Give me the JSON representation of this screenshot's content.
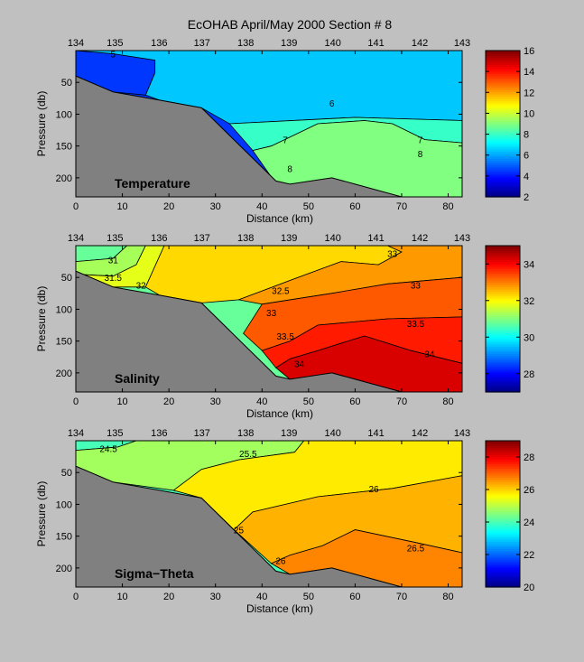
{
  "figure": {
    "title": "EcOHAB   April/May 2000   Section # 8"
  },
  "chart_data": [
    {
      "type": "heatmap",
      "panel_label": "Temperature",
      "xlabel": "Distance (km)",
      "ylabel": "Pressure (db)",
      "xlim": [
        0,
        83
      ],
      "ylim": [
        230,
        0
      ],
      "x_ticks": [
        0,
        10,
        20,
        30,
        40,
        50,
        60,
        70,
        80
      ],
      "y_ticks": [
        50,
        100,
        150,
        200
      ],
      "station_ticks": [
        "134",
        "135",
        "136",
        "137",
        "138",
        "139",
        "140",
        "141",
        "142",
        "143"
      ],
      "station_km": [
        0,
        8.4,
        17.9,
        27.1,
        36.5,
        45.8,
        55.2,
        64.5,
        73.9,
        83
      ],
      "colorbar": {
        "min": 2,
        "max": 16,
        "ticks": [
          2,
          4,
          6,
          8,
          10,
          12,
          14,
          16
        ]
      },
      "bathymetry": [
        [
          0,
          40
        ],
        [
          8,
          65
        ],
        [
          18,
          78
        ],
        [
          27,
          90
        ],
        [
          43,
          205
        ],
        [
          46,
          210
        ],
        [
          55,
          200
        ],
        [
          60,
          210
        ],
        [
          70,
          230
        ],
        [
          83,
          230
        ]
      ],
      "regions": [
        {
          "value": 4.5,
          "polygon": [
            [
              0,
              0
            ],
            [
              0,
              40
            ],
            [
              8,
              65
            ],
            [
              15,
              70
            ],
            [
              17,
              35
            ],
            [
              17,
              15
            ],
            [
              8,
              5
            ],
            [
              0,
              0
            ]
          ]
        },
        {
          "value": 6.5,
          "polygon": [
            [
              0,
              0
            ],
            [
              8,
              5
            ],
            [
              17,
              15
            ],
            [
              17,
              35
            ],
            [
              15,
              70
            ],
            [
              18,
              78
            ],
            [
              27,
              90
            ],
            [
              33,
              115
            ],
            [
              60,
              105
            ],
            [
              83,
              110
            ],
            [
              83,
              0
            ]
          ]
        },
        {
          "value": 8,
          "polygon": [
            [
              33,
              115
            ],
            [
              60,
              105
            ],
            [
              83,
              110
            ],
            [
              83,
              145
            ],
            [
              75,
              140
            ],
            [
              68,
              115
            ],
            [
              62,
              110
            ],
            [
              52,
              115
            ],
            [
              42,
              150
            ],
            [
              38,
              157
            ]
          ]
        },
        {
          "value": 9,
          "polygon": [
            [
              38,
              157
            ],
            [
              42,
              150
            ],
            [
              52,
              115
            ],
            [
              62,
              110
            ],
            [
              68,
              115
            ],
            [
              75,
              140
            ],
            [
              83,
              145
            ],
            [
              83,
              230
            ],
            [
              45,
              230
            ]
          ]
        }
      ],
      "contour_labels": [
        {
          "text": "5",
          "x": 8,
          "y": 5
        },
        {
          "text": "6",
          "x": 55,
          "y": 82
        },
        {
          "text": "7",
          "x": 45,
          "y": 140
        },
        {
          "text": "7",
          "x": 74,
          "y": 140
        },
        {
          "text": "8",
          "x": 46,
          "y": 185
        },
        {
          "text": "8",
          "x": 74,
          "y": 162
        }
      ]
    },
    {
      "type": "heatmap",
      "panel_label": "Salinity",
      "xlabel": "Distance (km)",
      "ylabel": "Pressure (db)",
      "xlim": [
        0,
        83
      ],
      "ylim": [
        230,
        0
      ],
      "x_ticks": [
        0,
        10,
        20,
        30,
        40,
        50,
        60,
        70,
        80
      ],
      "y_ticks": [
        50,
        100,
        150,
        200
      ],
      "station_ticks": [
        "134",
        "135",
        "136",
        "137",
        "138",
        "139",
        "140",
        "141",
        "142",
        "143"
      ],
      "station_km": [
        0,
        8.4,
        17.9,
        27.1,
        36.5,
        45.8,
        55.2,
        64.5,
        73.9,
        83
      ],
      "colorbar": {
        "min": 27,
        "max": 35,
        "ticks": [
          28,
          30,
          32,
          34
        ]
      },
      "bathymetry": [
        [
          0,
          40
        ],
        [
          8,
          65
        ],
        [
          18,
          78
        ],
        [
          27,
          90
        ],
        [
          43,
          205
        ],
        [
          46,
          210
        ],
        [
          55,
          200
        ],
        [
          60,
          210
        ],
        [
          70,
          230
        ],
        [
          83,
          230
        ]
      ],
      "regions": [
        {
          "value": 30.8,
          "polygon": [
            [
              0,
              0
            ],
            [
              11,
              0
            ],
            [
              8,
              20
            ],
            [
              0,
              25
            ]
          ]
        },
        {
          "value": 31.3,
          "polygon": [
            [
              11,
              0
            ],
            [
              15,
              0
            ],
            [
              13,
              30
            ],
            [
              8,
              48
            ],
            [
              0,
              45
            ],
            [
              0,
              25
            ],
            [
              8,
              20
            ]
          ]
        },
        {
          "value": 31.8,
          "polygon": [
            [
              15,
              0
            ],
            [
              19,
              0
            ],
            [
              15,
              65
            ],
            [
              8,
              65
            ],
            [
              0,
              40
            ],
            [
              0,
              45
            ],
            [
              8,
              48
            ],
            [
              13,
              30
            ]
          ]
        },
        {
          "value": 32.3,
          "polygon": [
            [
              19,
              0
            ],
            [
              67,
              0
            ],
            [
              70,
              10
            ],
            [
              65,
              30
            ],
            [
              57,
              25
            ],
            [
              47,
              52
            ],
            [
              35,
              85
            ],
            [
              27,
              90
            ],
            [
              18,
              78
            ],
            [
              15,
              65
            ]
          ]
        },
        {
          "value": 32.8,
          "polygon": [
            [
              67,
              0
            ],
            [
              83,
              0
            ],
            [
              83,
              50
            ],
            [
              67,
              60
            ],
            [
              55,
              75
            ],
            [
              40,
              92
            ],
            [
              35,
              85
            ],
            [
              47,
              52
            ],
            [
              57,
              25
            ],
            [
              65,
              30
            ],
            [
              70,
              10
            ]
          ]
        },
        {
          "value": 33.3,
          "polygon": [
            [
              83,
              50
            ],
            [
              83,
              112
            ],
            [
              67,
              115
            ],
            [
              52,
              125
            ],
            [
              46,
              150
            ],
            [
              40,
              165
            ],
            [
              36,
              138
            ],
            [
              40,
              92
            ],
            [
              55,
              75
            ],
            [
              67,
              60
            ]
          ]
        },
        {
          "value": 33.8,
          "polygon": [
            [
              83,
              112
            ],
            [
              83,
              185
            ],
            [
              72,
              165
            ],
            [
              62,
              142
            ],
            [
              52,
              165
            ],
            [
              46,
              178
            ],
            [
              43,
              192
            ],
            [
              40,
              165
            ],
            [
              46,
              150
            ],
            [
              52,
              125
            ],
            [
              67,
              115
            ]
          ]
        },
        {
          "value": 34.3,
          "polygon": [
            [
              83,
              185
            ],
            [
              83,
              230
            ],
            [
              70,
              230
            ],
            [
              60,
              210
            ],
            [
              55,
              200
            ],
            [
              46,
              210
            ],
            [
              43,
              192
            ],
            [
              46,
              178
            ],
            [
              52,
              165
            ],
            [
              62,
              142
            ],
            [
              72,
              165
            ]
          ]
        }
      ],
      "contour_labels": [
        {
          "text": "31",
          "x": 8,
          "y": 22
        },
        {
          "text": "31.5",
          "x": 8,
          "y": 50
        },
        {
          "text": "32",
          "x": 14,
          "y": 62
        },
        {
          "text": "32.5",
          "x": 44,
          "y": 70
        },
        {
          "text": "33",
          "x": 73,
          "y": 62
        },
        {
          "text": "33",
          "x": 42,
          "y": 105
        },
        {
          "text": "33.5",
          "x": 73,
          "y": 122
        },
        {
          "text": "33.5",
          "x": 45,
          "y": 142
        },
        {
          "text": "34",
          "x": 48,
          "y": 185
        },
        {
          "text": "34",
          "x": 76,
          "y": 170
        },
        {
          "text": "33",
          "x": 68,
          "y": 12
        }
      ]
    },
    {
      "type": "heatmap",
      "panel_label": "Sigma−Theta",
      "xlabel": "Distance (km)",
      "ylabel": "Pressure (db)",
      "xlim": [
        0,
        83
      ],
      "ylim": [
        230,
        0
      ],
      "x_ticks": [
        0,
        10,
        20,
        30,
        40,
        50,
        60,
        70,
        80
      ],
      "y_ticks": [
        50,
        100,
        150,
        200
      ],
      "station_ticks": [
        "134",
        "135",
        "136",
        "137",
        "138",
        "139",
        "140",
        "141",
        "142",
        "143"
      ],
      "station_km": [
        0,
        8.4,
        17.9,
        27.1,
        36.5,
        45.8,
        55.2,
        64.5,
        73.9,
        83
      ],
      "colorbar": {
        "min": 20,
        "max": 29,
        "ticks": [
          20,
          22,
          24,
          26,
          28
        ]
      },
      "bathymetry": [
        [
          0,
          40
        ],
        [
          8,
          65
        ],
        [
          18,
          78
        ],
        [
          27,
          90
        ],
        [
          43,
          205
        ],
        [
          46,
          210
        ],
        [
          55,
          200
        ],
        [
          60,
          210
        ],
        [
          70,
          230
        ],
        [
          83,
          230
        ]
      ],
      "regions": [
        {
          "value": 24.0,
          "polygon": [
            [
              0,
              0
            ],
            [
              13,
              0
            ],
            [
              9,
              10
            ],
            [
              0,
              15
            ]
          ]
        },
        {
          "value": 24.8,
          "polygon": [
            [
              13,
              0
            ],
            [
              49,
              0
            ],
            [
              47,
              18
            ],
            [
              35,
              30
            ],
            [
              27,
              45
            ],
            [
              21,
              78
            ],
            [
              8,
              65
            ],
            [
              0,
              40
            ],
            [
              0,
              15
            ],
            [
              9,
              10
            ]
          ]
        },
        {
          "value": 25.8,
          "polygon": [
            [
              49,
              0
            ],
            [
              83,
              0
            ],
            [
              83,
              55
            ],
            [
              68,
              75
            ],
            [
              52,
              88
            ],
            [
              38,
              112
            ],
            [
              34,
              140
            ],
            [
              27,
              90
            ],
            [
              21,
              78
            ],
            [
              27,
              45
            ],
            [
              35,
              30
            ],
            [
              47,
              18
            ]
          ]
        },
        {
          "value": 26.3,
          "polygon": [
            [
              83,
              55
            ],
            [
              83,
              176
            ],
            [
              73,
              160
            ],
            [
              60,
              140
            ],
            [
              53,
              165
            ],
            [
              46,
              180
            ],
            [
              42,
              193
            ],
            [
              34,
              140
            ],
            [
              38,
              112
            ],
            [
              52,
              88
            ],
            [
              68,
              75
            ]
          ]
        },
        {
          "value": 26.7,
          "polygon": [
            [
              83,
              176
            ],
            [
              83,
              230
            ],
            [
              70,
              230
            ],
            [
              60,
              210
            ],
            [
              55,
              200
            ],
            [
              46,
              210
            ],
            [
              42,
              193
            ],
            [
              46,
              180
            ],
            [
              53,
              165
            ],
            [
              60,
              140
            ],
            [
              73,
              160
            ]
          ]
        }
      ],
      "contour_labels": [
        {
          "text": "24.5",
          "x": 7,
          "y": 12
        },
        {
          "text": "25.5",
          "x": 37,
          "y": 20
        },
        {
          "text": "26",
          "x": 64,
          "y": 75
        },
        {
          "text": "26.5",
          "x": 73,
          "y": 168
        },
        {
          "text": "25",
          "x": 35,
          "y": 140
        },
        {
          "text": "26",
          "x": 44,
          "y": 188
        }
      ]
    }
  ]
}
